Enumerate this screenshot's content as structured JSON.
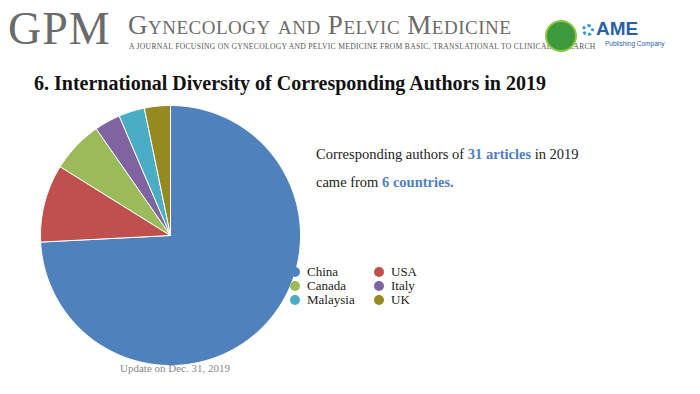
{
  "header": {
    "abbr": "GPM",
    "journal": "Gynecology and Pelvic Medicine",
    "tagline": "A JOURNAL FOCUSING ON GYNECOLOGY AND PELVIC MEDICINE FROM BASIC, TRANSLATIONAL TO CLINICAL RESEARCH",
    "publisher": "AME",
    "publisher_sub": "Publishing Company"
  },
  "chart_data": {
    "type": "pie",
    "title": "6. International Diversity of Corresponding Authors in 2019",
    "categories": [
      "China",
      "USA",
      "Canada",
      "Italy",
      "Malaysia",
      "UK"
    ],
    "values": [
      23,
      3,
      2,
      1,
      1,
      1
    ],
    "colors": [
      "#4f81bd",
      "#c0504d",
      "#9bbb59",
      "#8064a2",
      "#4bacc6",
      "#948a20"
    ],
    "legend": "right",
    "annotations": [
      [
        "Corresponding authors of ",
        "31 articles",
        " in 2019"
      ],
      [
        "came from ",
        "6 countries."
      ],
      "Update on Dec. 31, 2019"
    ]
  }
}
